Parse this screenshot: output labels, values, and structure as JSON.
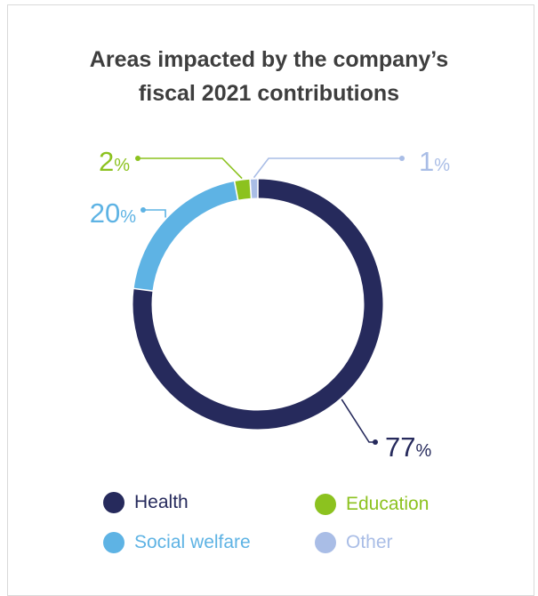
{
  "chart_data": {
    "type": "pie",
    "title_lines": [
      "Areas impacted by the company’s",
      "fiscal 2021 contributions"
    ],
    "donut": true,
    "slices": [
      {
        "label": "Health",
        "value": 77,
        "value_text": "77",
        "unit": "%",
        "color": "#262a5c"
      },
      {
        "label": "Social welfare",
        "value": 20,
        "value_text": "20",
        "unit": "%",
        "color": "#5eb3e4"
      },
      {
        "label": "Education",
        "value": 2,
        "value_text": "2",
        "unit": "%",
        "color": "#8cc21f"
      },
      {
        "label": "Other",
        "value": 1,
        "value_text": "1",
        "unit": "%",
        "color": "#a9bde6"
      }
    ],
    "legend": [
      {
        "label": "Health",
        "color": "#262a5c",
        "text_color": "#262a5c"
      },
      {
        "label": "Education",
        "color": "#8cc21f",
        "text_color": "#8cc21f"
      },
      {
        "label": "Social welfare",
        "color": "#5eb3e4",
        "text_color": "#5eb3e4"
      },
      {
        "label": "Other",
        "color": "#a9bde6",
        "text_color": "#a9bde6"
      }
    ]
  }
}
